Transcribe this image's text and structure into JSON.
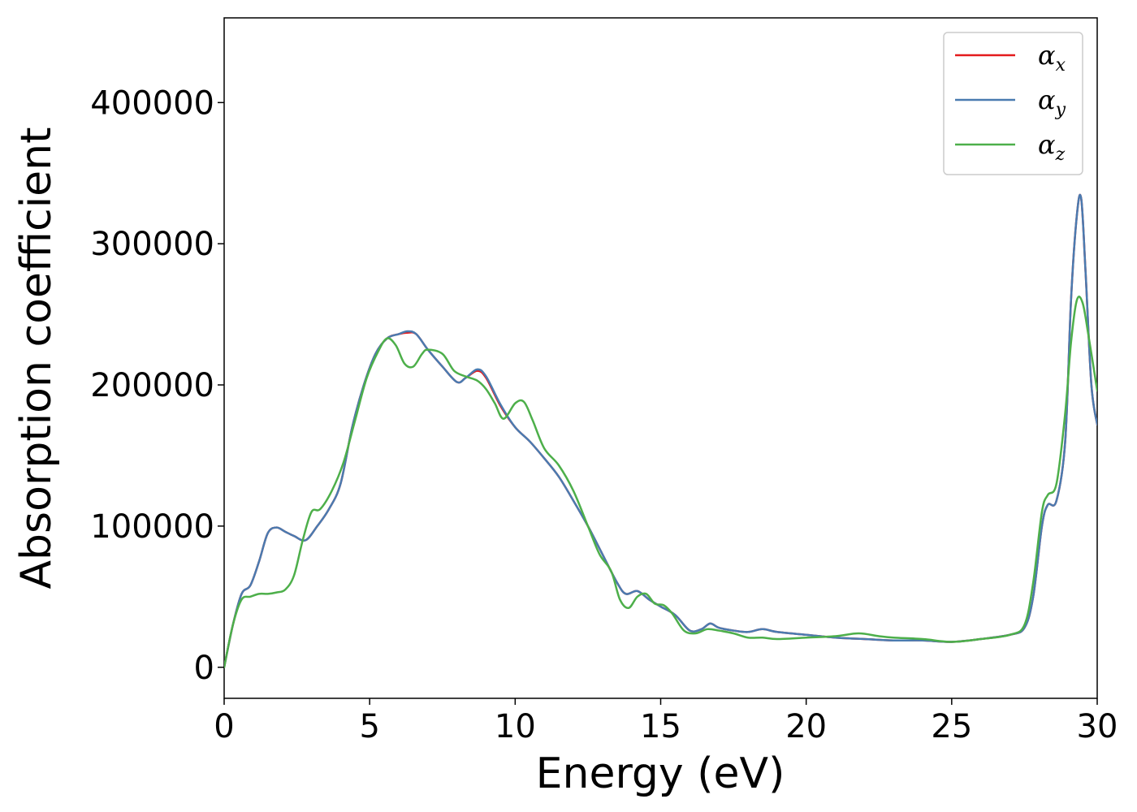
{
  "chart_data": {
    "type": "line",
    "title": "",
    "xlabel": "Energy (eV)",
    "ylabel": "Absorption coefficient",
    "xlim": [
      0,
      30
    ],
    "ylim": [
      -22000,
      460000
    ],
    "x_ticks": [
      0,
      5,
      10,
      15,
      20,
      25,
      30
    ],
    "y_ticks": [
      0,
      100000,
      200000,
      300000,
      400000
    ],
    "grid": false,
    "legend_placement": "top-right",
    "series": [
      {
        "name": "α_x",
        "symbol": "α",
        "subscript": "x",
        "color": "#e41a1c",
        "x": [
          0,
          0.3,
          0.6,
          0.9,
          1.2,
          1.5,
          1.8,
          2.1,
          2.4,
          2.8,
          3.2,
          3.6,
          4.0,
          4.4,
          4.8,
          5.2,
          5.6,
          6.0,
          6.3,
          6.6,
          7.0,
          7.5,
          8.0,
          8.3,
          8.7,
          9.0,
          9.5,
          10.0,
          10.5,
          11.0,
          11.5,
          12.0,
          12.5,
          13.0,
          13.5,
          13.8,
          14.2,
          14.6,
          15.0,
          15.5,
          16.0,
          16.4,
          16.7,
          17.0,
          17.5,
          18.0,
          18.5,
          19.0,
          20.0,
          21.0,
          22.0,
          23.0,
          24.0,
          25.0,
          26.0,
          27.0,
          27.5,
          27.8,
          28.1,
          28.3,
          28.6,
          28.9,
          29.1,
          29.3,
          29.45,
          29.6,
          29.8,
          30.0
        ],
        "values": [
          0,
          30000,
          52000,
          58000,
          75000,
          95000,
          99000,
          96000,
          93000,
          90000,
          100000,
          112000,
          130000,
          170000,
          200000,
          222000,
          233000,
          236000,
          237000,
          236000,
          225000,
          213000,
          202000,
          205000,
          210000,
          205000,
          185000,
          170000,
          160000,
          148000,
          135000,
          118000,
          100000,
          80000,
          60000,
          52000,
          54000,
          48000,
          43000,
          37000,
          26000,
          27000,
          31000,
          28000,
          26000,
          25000,
          27000,
          25000,
          23000,
          21000,
          20000,
          19000,
          19000,
          18000,
          20000,
          23000,
          28000,
          50000,
          100000,
          115000,
          118000,
          160000,
          260000,
          320000,
          332000,
          280000,
          200000,
          172000
        ]
      },
      {
        "name": "α_y",
        "symbol": "α",
        "subscript": "y",
        "color": "#4a7bb0",
        "x": [
          0,
          0.3,
          0.6,
          0.9,
          1.2,
          1.5,
          1.8,
          2.1,
          2.4,
          2.8,
          3.2,
          3.6,
          4.0,
          4.4,
          4.8,
          5.2,
          5.6,
          6.0,
          6.3,
          6.6,
          7.0,
          7.5,
          8.0,
          8.3,
          8.7,
          9.0,
          9.5,
          10.0,
          10.5,
          11.0,
          11.5,
          12.0,
          12.5,
          13.0,
          13.5,
          13.8,
          14.2,
          14.6,
          15.0,
          15.5,
          16.0,
          16.4,
          16.7,
          17.0,
          17.5,
          18.0,
          18.5,
          19.0,
          20.0,
          21.0,
          22.0,
          23.0,
          24.0,
          25.0,
          26.0,
          27.0,
          27.5,
          27.8,
          28.1,
          28.3,
          28.6,
          28.9,
          29.1,
          29.3,
          29.45,
          29.6,
          29.8,
          30.0
        ],
        "values": [
          0,
          30000,
          52000,
          58000,
          75000,
          95000,
          99000,
          96000,
          93000,
          90000,
          100000,
          112000,
          130000,
          170000,
          200000,
          222000,
          233000,
          236000,
          238000,
          236000,
          225000,
          213000,
          202000,
          205000,
          211000,
          206000,
          186000,
          170000,
          160000,
          148000,
          135000,
          118000,
          100000,
          80000,
          60000,
          52000,
          54000,
          48000,
          43000,
          37000,
          26000,
          27000,
          31000,
          28000,
          26000,
          25000,
          27000,
          25000,
          23000,
          21000,
          20000,
          19000,
          19000,
          18000,
          20000,
          23000,
          28000,
          50000,
          100000,
          115000,
          118000,
          160000,
          260000,
          320000,
          332000,
          280000,
          200000,
          172000
        ]
      },
      {
        "name": "α_z",
        "symbol": "α",
        "subscript": "z",
        "color": "#4daf4a",
        "x": [
          0,
          0.3,
          0.6,
          0.9,
          1.2,
          1.5,
          1.8,
          2.1,
          2.4,
          2.7,
          3.0,
          3.3,
          3.7,
          4.1,
          4.5,
          4.9,
          5.3,
          5.6,
          5.9,
          6.2,
          6.5,
          6.8,
          7.0,
          7.5,
          7.9,
          8.3,
          8.7,
          9.0,
          9.3,
          9.6,
          10.0,
          10.3,
          10.6,
          11.0,
          11.5,
          12.0,
          12.5,
          12.9,
          13.3,
          13.6,
          13.9,
          14.2,
          14.5,
          14.8,
          15.1,
          15.4,
          15.8,
          16.2,
          16.6,
          17.0,
          17.5,
          18.0,
          18.5,
          19.0,
          20.0,
          21.0,
          21.8,
          22.5,
          23.0,
          24.0,
          25.0,
          26.0,
          27.0,
          27.5,
          27.8,
          28.1,
          28.3,
          28.6,
          28.9,
          29.1,
          29.3,
          29.5,
          29.7,
          30.0
        ],
        "values": [
          0,
          30000,
          48000,
          50000,
          52000,
          52000,
          53000,
          55000,
          65000,
          90000,
          110000,
          112000,
          125000,
          145000,
          175000,
          205000,
          224000,
          233000,
          228000,
          215000,
          213000,
          222000,
          225000,
          222000,
          210000,
          206000,
          203000,
          197000,
          187000,
          176000,
          187000,
          188000,
          175000,
          155000,
          143000,
          125000,
          100000,
          80000,
          68000,
          48000,
          42000,
          50000,
          52000,
          45000,
          44000,
          38000,
          26000,
          24000,
          27000,
          26000,
          24000,
          21000,
          21000,
          20000,
          21000,
          22000,
          24000,
          22000,
          21000,
          20000,
          18000,
          20000,
          23000,
          30000,
          60000,
          110000,
          122000,
          130000,
          180000,
          230000,
          260000,
          258000,
          235000,
          196000
        ]
      }
    ]
  }
}
